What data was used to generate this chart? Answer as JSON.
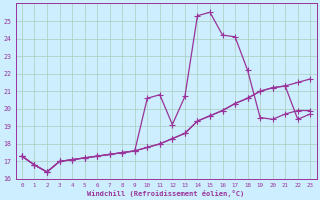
{
  "xlabel": "Windchill (Refroidissement éolien,°C)",
  "background_color": "#cceeff",
  "grid_color": "#aaccbb",
  "line_color": "#993399",
  "xlim": [
    -0.5,
    23.5
  ],
  "ylim": [
    16,
    26
  ],
  "yticks": [
    16,
    17,
    18,
    19,
    20,
    21,
    22,
    23,
    24,
    25
  ],
  "xticks": [
    0,
    1,
    2,
    3,
    4,
    5,
    6,
    7,
    8,
    9,
    10,
    11,
    12,
    13,
    14,
    15,
    16,
    17,
    18,
    19,
    20,
    21,
    22,
    23
  ],
  "line1_x": [
    0,
    1,
    2,
    3,
    4,
    5,
    6,
    7,
    8,
    9,
    10,
    11,
    12,
    13,
    14,
    15,
    16,
    17,
    18,
    19,
    20,
    21,
    22,
    23
  ],
  "line1_y": [
    17.3,
    16.8,
    16.4,
    17.0,
    17.1,
    17.2,
    17.3,
    17.4,
    17.5,
    17.6,
    20.6,
    20.8,
    19.1,
    20.7,
    25.3,
    25.5,
    24.2,
    24.1,
    22.2,
    19.5,
    19.4,
    19.7,
    19.9,
    19.9
  ],
  "line2_x": [
    0,
    1,
    2,
    3,
    4,
    5,
    6,
    7,
    8,
    9,
    10,
    11,
    12,
    13,
    14,
    15,
    16,
    17,
    18,
    19,
    20,
    21,
    22,
    23
  ],
  "line2_y": [
    17.3,
    16.8,
    16.4,
    17.0,
    17.1,
    17.2,
    17.3,
    17.4,
    17.5,
    17.6,
    17.8,
    18.0,
    18.3,
    18.6,
    19.3,
    19.6,
    19.9,
    20.3,
    20.6,
    21.0,
    21.2,
    21.3,
    19.4,
    19.7
  ],
  "line3_x": [
    0,
    1,
    2,
    3,
    4,
    5,
    6,
    7,
    8,
    9,
    10,
    11,
    12,
    13,
    14,
    15,
    16,
    17,
    18,
    19,
    20,
    21,
    22,
    23
  ],
  "line3_y": [
    17.3,
    16.8,
    16.4,
    17.0,
    17.1,
    17.2,
    17.3,
    17.4,
    17.5,
    17.6,
    17.8,
    18.0,
    18.3,
    18.6,
    19.3,
    19.6,
    19.9,
    20.3,
    20.6,
    21.0,
    21.2,
    21.3,
    21.5,
    21.7
  ]
}
